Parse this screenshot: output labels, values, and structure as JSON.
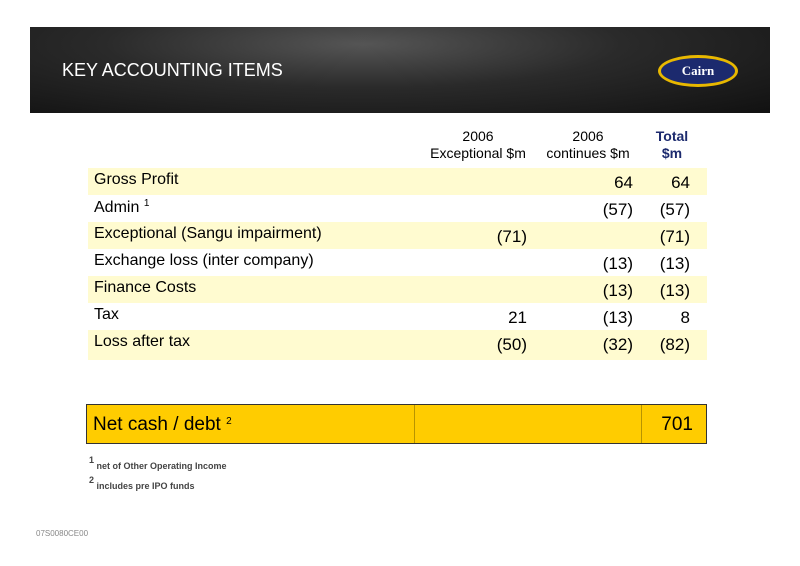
{
  "header": {
    "title": "KEY ACCOUNTING ITEMS",
    "logo": "Cairn"
  },
  "table": {
    "columns": [
      {
        "line1": "2006",
        "line2": "Exceptional $m"
      },
      {
        "line1": "2006",
        "line2": "continues $m"
      },
      {
        "line1": "Total",
        "line2": "$m"
      }
    ],
    "rows": [
      {
        "label": "Gross Profit",
        "note": null,
        "cells": [
          null,
          "64",
          "64"
        ]
      },
      {
        "label": "Admin",
        "note": "1",
        "cells": [
          null,
          "(57)",
          "(57)"
        ]
      },
      {
        "label": "Exceptional (Sangu impairment)",
        "note": null,
        "cells": [
          "(71)",
          null,
          "(71)"
        ]
      },
      {
        "label": "Exchange loss (inter company)",
        "note": null,
        "cells": [
          null,
          "(13)",
          "(13)"
        ]
      },
      {
        "label": "Finance Costs",
        "note": null,
        "cells": [
          null,
          "(13)",
          "(13)"
        ]
      },
      {
        "label": "Tax",
        "note": null,
        "cells": [
          "21",
          "(13)",
          "8"
        ]
      },
      {
        "label": "Loss after tax",
        "note": null,
        "cells": [
          "(50)",
          "(32)",
          "(82)"
        ]
      }
    ],
    "net_cash": {
      "label": "Net cash / debt",
      "note": "2",
      "total": "701"
    }
  },
  "footnotes": [
    {
      "mark": "1",
      "text": "net of Other Operating Income"
    },
    {
      "mark": "2",
      "text": "includes pre IPO funds"
    }
  ],
  "footer": {
    "code": "07S0080CE00"
  }
}
